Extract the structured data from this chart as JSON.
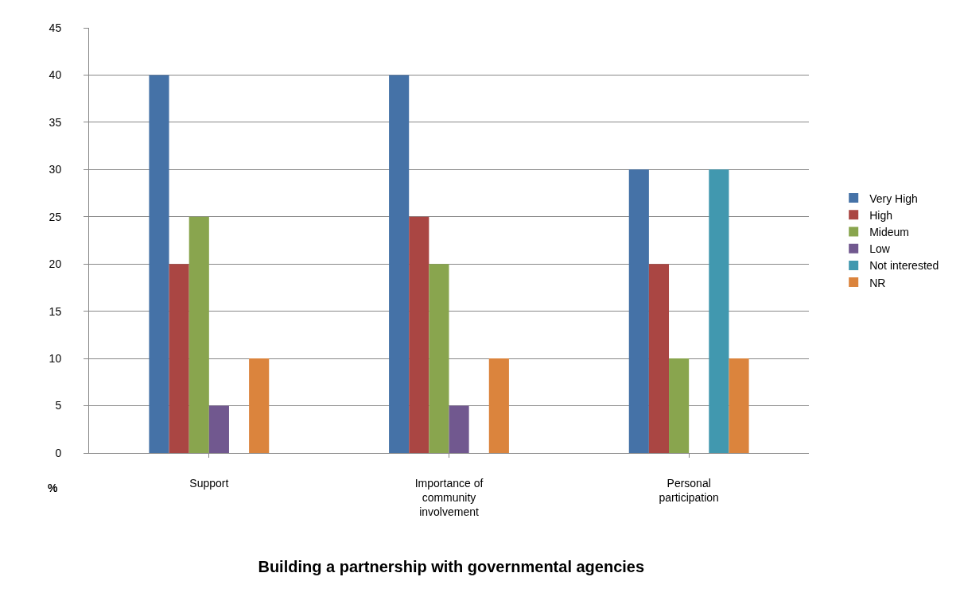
{
  "chart_data": {
    "type": "bar",
    "title": "Building a partnership with governmental agencies",
    "ylabel": "%",
    "categories": [
      "Support",
      "Importance of community involvement",
      "Personal participation"
    ],
    "series": [
      {
        "name": "Very High",
        "color": "#4572a7",
        "values": [
          40,
          40,
          30
        ]
      },
      {
        "name": "High",
        "color": "#aa4643",
        "values": [
          20,
          25,
          20
        ]
      },
      {
        "name": "Mideum",
        "color": "#89a54e",
        "values": [
          25,
          20,
          10
        ]
      },
      {
        "name": "Low",
        "color": "#71588f",
        "values": [
          5,
          5,
          null
        ]
      },
      {
        "name": "Not interested",
        "color": "#4198af",
        "values": [
          null,
          null,
          30
        ]
      },
      {
        "name": "NR",
        "color": "#db843d",
        "values": [
          10,
          10,
          10
        ]
      }
    ],
    "ylim": [
      0,
      45
    ],
    "yticks": [
      0,
      5,
      10,
      15,
      20,
      25,
      30,
      35,
      40,
      45
    ],
    "grid": "y",
    "legend": "right"
  }
}
